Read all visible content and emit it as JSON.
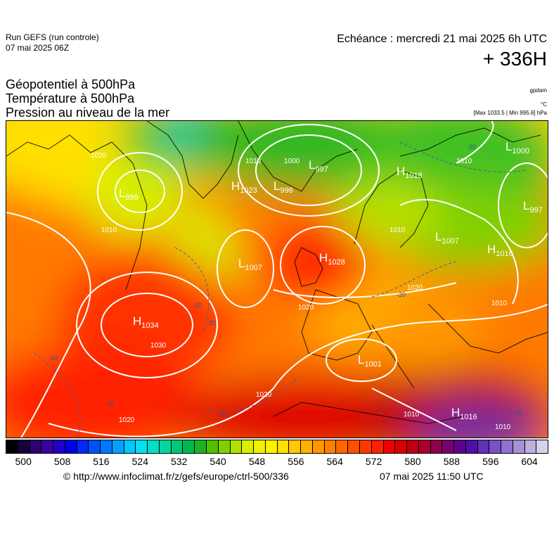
{
  "header": {
    "run_title": "Run GEFS (run controle)",
    "run_date": "07 mai 2025 06Z",
    "valid_time": "Echéance : mercredi 21 mai 2025 6h UTC",
    "lead_time": "+ 336H"
  },
  "parameters": {
    "line1": "Géopotentiel à 500hPa",
    "line2": "Température à 500hPa",
    "line3": "Pression au niveau de la mer"
  },
  "units": {
    "geopotential": "gpdam",
    "temperature": "°C",
    "pressure_range": "[Max 1033.5 | Min 995.6] hPa"
  },
  "colorbar": {
    "ticks": [
      "500",
      "508",
      "516",
      "524",
      "532",
      "540",
      "548",
      "556",
      "564",
      "572",
      "580",
      "588",
      "596",
      "604"
    ],
    "colors": [
      "#000000",
      "#18003c",
      "#300070",
      "#3c00a0",
      "#2000c8",
      "#0000e8",
      "#0028ff",
      "#0050ff",
      "#0078ff",
      "#00a0ff",
      "#00c8ff",
      "#00e0f0",
      "#00e0c0",
      "#00d8a0",
      "#00c878",
      "#00b850",
      "#20b028",
      "#50c000",
      "#80d000",
      "#b0e000",
      "#d8f000",
      "#f0f000",
      "#fff000",
      "#ffe000",
      "#ffc800",
      "#ffb000",
      "#ff9800",
      "#ff8000",
      "#ff6800",
      "#ff5000",
      "#ff3800",
      "#ff2000",
      "#f00000",
      "#d80000",
      "#c00010",
      "#a80030",
      "#900050",
      "#780070",
      "#600090",
      "#5010a8",
      "#6030b8",
      "#7850c8",
      "#9070d0",
      "#a890d8",
      "#c0b0e0",
      "#d8d0ec"
    ]
  },
  "map": {
    "pressure_centers": [
      {
        "type": "H",
        "value": "1034"
      },
      {
        "type": "H",
        "value": "1028"
      },
      {
        "type": "H",
        "value": "1023"
      },
      {
        "type": "H",
        "value": "1018"
      },
      {
        "type": "H",
        "value": "1016"
      },
      {
        "type": "H",
        "value": "1016"
      },
      {
        "type": "L",
        "value": "1007"
      },
      {
        "type": "L",
        "value": "1007"
      },
      {
        "type": "L",
        "value": "1001"
      },
      {
        "type": "L",
        "value": "997"
      },
      {
        "type": "L",
        "value": "996"
      },
      {
        "type": "L",
        "value": "997"
      },
      {
        "type": "L",
        "value": "1000"
      },
      {
        "type": "L",
        "value": "999"
      }
    ],
    "isobar_labels": [
      "1020",
      "1010",
      "1010",
      "1020",
      "1030",
      "1020",
      "1010",
      "1020",
      "1010",
      "1020",
      "1010",
      "1000",
      "1010",
      "1010"
    ],
    "temperature_labels": [
      "-20",
      "-20",
      "-10",
      "-10",
      "-10",
      "-20",
      "-10",
      "-20",
      "-10"
    ]
  },
  "footer": {
    "source_url": "© http://www.infoclimat.fr/z/gefs/europe/ctrl-500/336",
    "generated": "07 mai 2025 11:50 UTC"
  }
}
